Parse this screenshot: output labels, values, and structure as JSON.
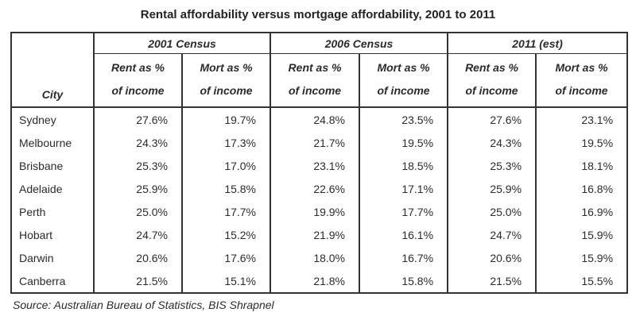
{
  "page": {
    "title": "Rental affordability versus mortgage affordability, 2001 to 2011",
    "source": "Source: Australian Bureau of Statistics, BIS Shrapnel"
  },
  "table": {
    "city_header": "City",
    "groups": [
      {
        "label": "2001 Census"
      },
      {
        "label": "2006 Census"
      },
      {
        "label": "2011 (est)"
      }
    ],
    "columns": [
      {
        "line1": "Rent as %",
        "line2": "of income"
      },
      {
        "line1": "Mort as %",
        "line2": "of income"
      },
      {
        "line1": "Rent as %",
        "line2": "of income"
      },
      {
        "line1": "Mort as %",
        "line2": "of income"
      },
      {
        "line1": "Rent as %",
        "line2": "of income"
      },
      {
        "line1": "Mort as %",
        "line2": "of income"
      }
    ],
    "rows": [
      {
        "city": "Sydney",
        "values": [
          "27.6%",
          "19.7%",
          "24.8%",
          "23.5%",
          "27.6%",
          "23.1%"
        ]
      },
      {
        "city": "Melbourne",
        "values": [
          "24.3%",
          "17.3%",
          "21.7%",
          "19.5%",
          "24.3%",
          "19.5%"
        ]
      },
      {
        "city": "Brisbane",
        "values": [
          "25.3%",
          "17.0%",
          "23.1%",
          "18.5%",
          "25.3%",
          "18.1%"
        ]
      },
      {
        "city": "Adelaide",
        "values": [
          "25.9%",
          "15.8%",
          "22.6%",
          "17.1%",
          "25.9%",
          "16.8%"
        ]
      },
      {
        "city": "Perth",
        "values": [
          "25.0%",
          "17.7%",
          "19.9%",
          "17.7%",
          "25.0%",
          "16.9%"
        ]
      },
      {
        "city": "Hobart",
        "values": [
          "24.7%",
          "15.2%",
          "21.9%",
          "16.1%",
          "24.7%",
          "15.9%"
        ]
      },
      {
        "city": "Darwin",
        "values": [
          "20.6%",
          "17.6%",
          "18.0%",
          "16.7%",
          "20.6%",
          "15.9%"
        ]
      },
      {
        "city": "Canberra",
        "values": [
          "21.5%",
          "15.1%",
          "21.8%",
          "15.8%",
          "21.5%",
          "15.5%"
        ]
      }
    ]
  },
  "chart_data": {
    "type": "table",
    "title": "Rental affordability versus mortgage affordability, 2001 to 2011",
    "columns": [
      "City",
      "2001 Census Rent as % of income",
      "2001 Census Mort as % of income",
      "2006 Census Rent as % of income",
      "2006 Census Mort as % of income",
      "2011 (est) Rent as % of income",
      "2011 (est) Mort as % of income"
    ],
    "rows": [
      [
        "Sydney",
        27.6,
        19.7,
        24.8,
        23.5,
        27.6,
        23.1
      ],
      [
        "Melbourne",
        24.3,
        17.3,
        21.7,
        19.5,
        24.3,
        19.5
      ],
      [
        "Brisbane",
        25.3,
        17.0,
        23.1,
        18.5,
        25.3,
        18.1
      ],
      [
        "Adelaide",
        25.9,
        15.8,
        22.6,
        17.1,
        25.9,
        16.8
      ],
      [
        "Perth",
        25.0,
        17.7,
        19.9,
        17.7,
        25.0,
        16.9
      ],
      [
        "Hobart",
        24.7,
        15.2,
        21.9,
        16.1,
        24.7,
        15.9
      ],
      [
        "Darwin",
        20.6,
        17.6,
        18.0,
        16.7,
        20.6,
        15.9
      ],
      [
        "Canberra",
        21.5,
        15.1,
        21.8,
        15.8,
        21.5,
        15.5
      ]
    ],
    "units": "percent",
    "source": "Source: Australian Bureau of Statistics, BIS Shrapnel"
  },
  "colors": {
    "text": "#2b2b2b",
    "border": "#333333",
    "background": "#ffffff"
  }
}
